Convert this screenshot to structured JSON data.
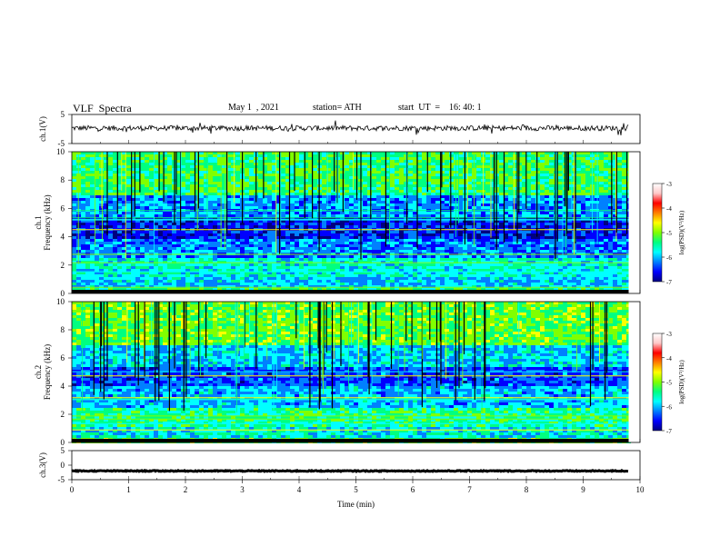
{
  "header": {
    "title": "VLF  Spectra",
    "date": "May 1  , 2021",
    "station": "station= ATH",
    "start": "start  UT  =    16: 40: 1"
  },
  "chart_data": [
    {
      "type": "line",
      "name": "ch1-waveform",
      "ylabel": "ch.1(V)",
      "ylim": [
        -5,
        5
      ],
      "yticks": [
        "5",
        "-5"
      ],
      "xlim": [
        0,
        10
      ],
      "x_extent": [
        0,
        9.8
      ],
      "baseline": 0.3
    },
    {
      "type": "heatmap",
      "name": "ch1-spectrogram",
      "ylabel": "ch.1\nFrequency  (kHz)",
      "ylim": [
        0,
        10
      ],
      "yticks": [
        "0",
        "2",
        "4",
        "6",
        "8",
        "10"
      ],
      "xlim": [
        0,
        10
      ],
      "x_extent": [
        0,
        9.8
      ],
      "colorbar": {
        "label": "log(PSD)(V²/Hz)",
        "range": [
          -7,
          -3
        ],
        "ticks": [
          "-3",
          "-4",
          "-5",
          "-6",
          "-7"
        ]
      }
    },
    {
      "type": "heatmap",
      "name": "ch2-spectrogram",
      "ylabel": "ch.2\nFrequency  (kHz)",
      "ylim": [
        0,
        10
      ],
      "yticks": [
        "0",
        "2",
        "4",
        "6",
        "8",
        "10"
      ],
      "xlim": [
        0,
        10
      ],
      "x_extent": [
        0,
        9.8
      ],
      "colorbar": {
        "label": "log(PSD)(V²/Hz)",
        "range": [
          -7,
          -3
        ],
        "ticks": [
          "-3",
          "-4",
          "-5",
          "-6",
          "-7"
        ]
      }
    },
    {
      "type": "line",
      "name": "ch3-waveform",
      "ylabel": "ch.3(V)",
      "ylim": [
        -5,
        5
      ],
      "yticks": [
        "5",
        "0",
        "-5"
      ],
      "xlim": [
        0,
        10
      ],
      "x_extent": [
        0,
        9.8
      ],
      "baseline": -2
    }
  ],
  "xaxis": {
    "label": "Time  (min)",
    "ticks": [
      "0",
      "1",
      "2",
      "3",
      "4",
      "5",
      "6",
      "7",
      "8",
      "9",
      "10"
    ]
  },
  "colors": {
    "colormap": [
      "#000080",
      "#0000ff",
      "#0080ff",
      "#00ffff",
      "#00ff80",
      "#80ff00",
      "#ffff00",
      "#ff8000",
      "#ff0000",
      "#ffc8c8",
      "#ffffff"
    ]
  }
}
